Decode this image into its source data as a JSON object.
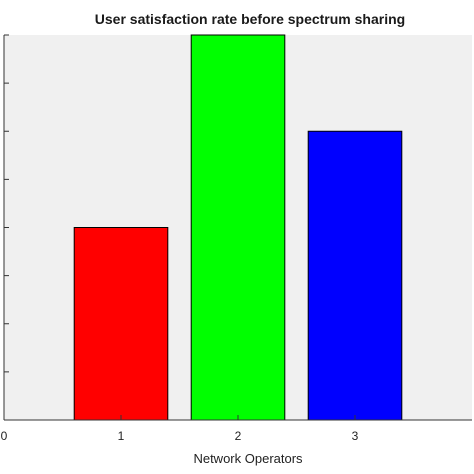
{
  "chart_data": {
    "type": "bar",
    "title": "User satisfaction rate before spectrum sharing",
    "xlabel": "Network Operators",
    "ylabel": "",
    "categories": [
      "1",
      "2",
      "3"
    ],
    "values": [
      0.4,
      0.8,
      0.6
    ],
    "ylim": [
      0,
      0.8
    ],
    "xlim": [
      0,
      4
    ],
    "x_tick_labels": [
      "0",
      "1",
      "2",
      "3"
    ],
    "bar_colors": [
      "#ff0000",
      "#00ff00",
      "#0000ff"
    ],
    "plot_background": "#f0f0f0",
    "grid": false,
    "legend": "none"
  }
}
